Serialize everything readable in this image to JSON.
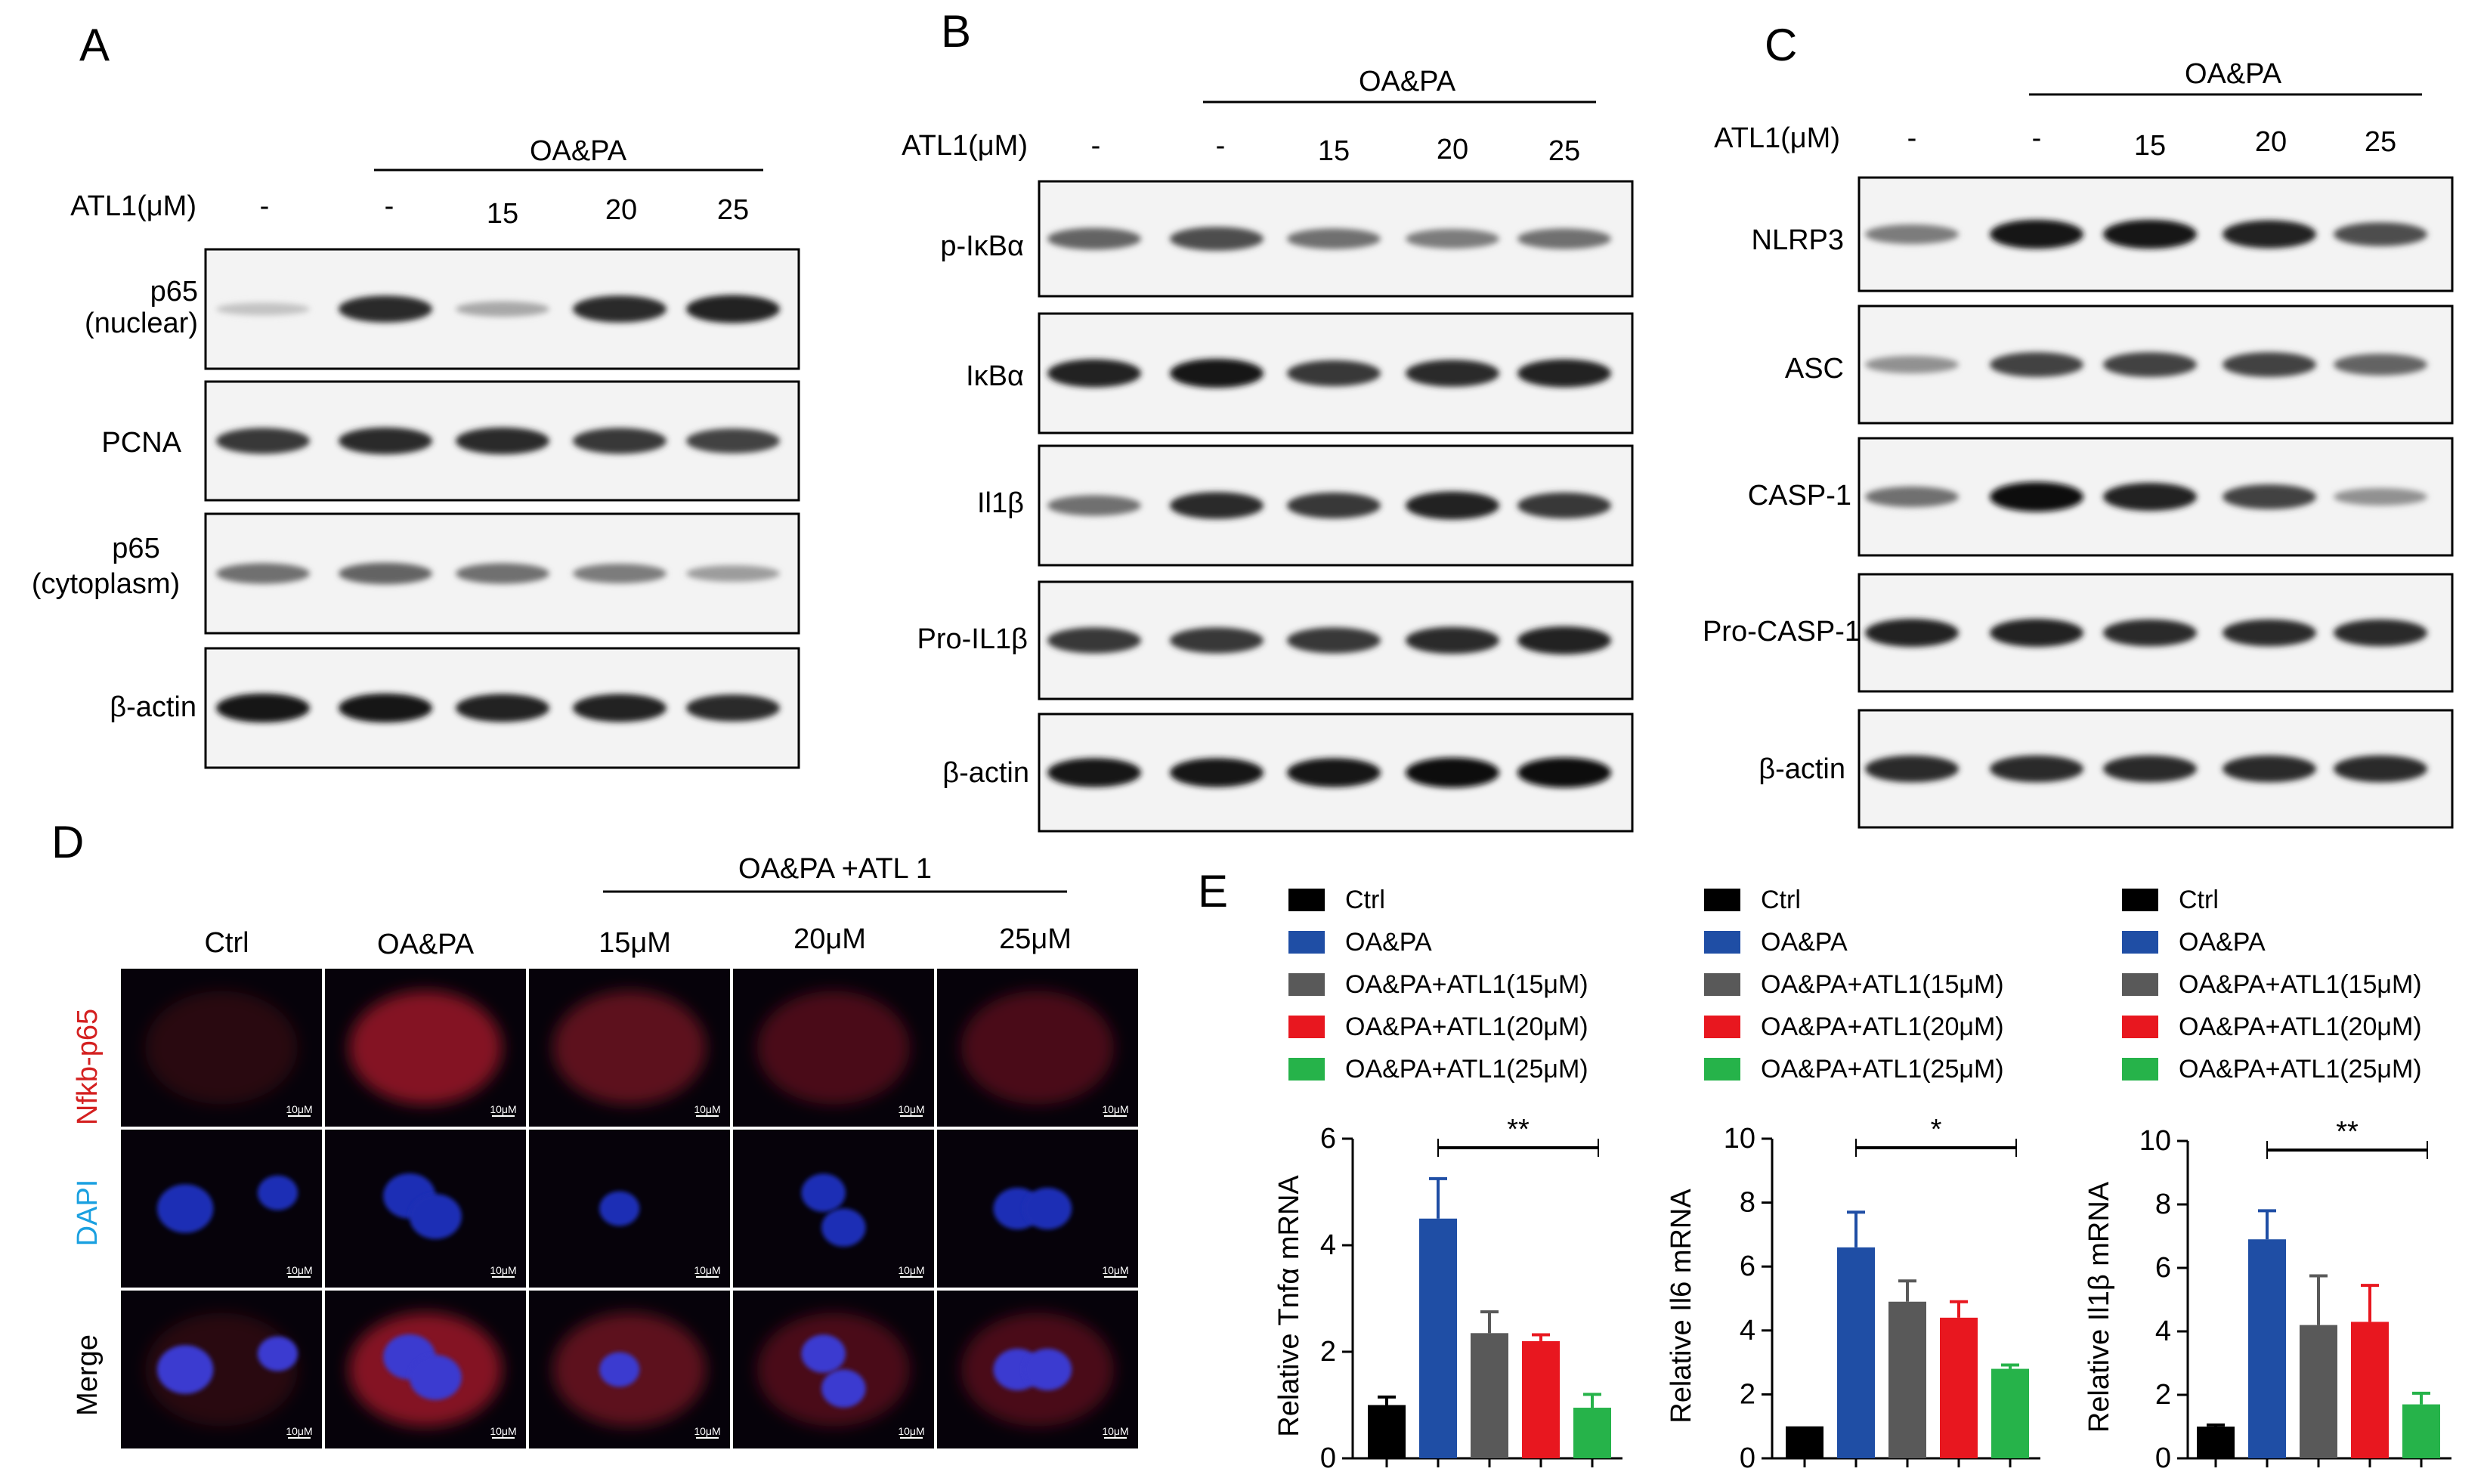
{
  "panels": {
    "A": {
      "letter": "A",
      "treatment_header": "OA&PA",
      "atl_label": "ATL1(μM)",
      "lanes": [
        "-",
        "-",
        "15",
        "20",
        "25"
      ],
      "bands": [
        {
          "label": "p65 (nuclear)",
          "intensity": [
            0.18,
            0.85,
            0.3,
            0.85,
            0.9
          ]
        },
        {
          "label": "PCNA",
          "intensity": [
            0.8,
            0.85,
            0.85,
            0.8,
            0.75
          ]
        },
        {
          "label": "p65 (cytoplasm)",
          "intensity": [
            0.55,
            0.6,
            0.55,
            0.5,
            0.35
          ]
        },
        {
          "label": "β-actin",
          "intensity": [
            0.95,
            0.95,
            0.9,
            0.9,
            0.85
          ]
        }
      ]
    },
    "B": {
      "letter": "B",
      "treatment_header": "OA&PA",
      "atl_label": "ATL1(μM)",
      "lanes": [
        "-",
        "-",
        "15",
        "20",
        "25"
      ],
      "bands": [
        {
          "label": "p-IκBα",
          "intensity": [
            0.6,
            0.7,
            0.55,
            0.5,
            0.55
          ]
        },
        {
          "label": "IκBα",
          "intensity": [
            0.9,
            0.95,
            0.8,
            0.85,
            0.9
          ]
        },
        {
          "label": "Il1β",
          "intensity": [
            0.55,
            0.85,
            0.8,
            0.9,
            0.8
          ]
        },
        {
          "label": "Pro-IL1β",
          "intensity": [
            0.8,
            0.8,
            0.8,
            0.85,
            0.9
          ]
        },
        {
          "label": "β-actin",
          "intensity": [
            0.95,
            0.95,
            0.95,
            1.0,
            1.0
          ]
        }
      ]
    },
    "C": {
      "letter": "C",
      "treatment_header": "OA&PA",
      "atl_label": "ATL1(μM)",
      "lanes": [
        "-",
        "-",
        "15",
        "20",
        "25"
      ],
      "bands": [
        {
          "label": "NLRP3",
          "intensity": [
            0.5,
            0.95,
            0.95,
            0.9,
            0.7
          ]
        },
        {
          "label": "ASC",
          "intensity": [
            0.4,
            0.75,
            0.75,
            0.75,
            0.6
          ]
        },
        {
          "label": "CASP-1",
          "intensity": [
            0.55,
            0.98,
            0.9,
            0.75,
            0.4
          ]
        },
        {
          "label": "Pro-CASP-1",
          "intensity": [
            0.9,
            0.9,
            0.85,
            0.85,
            0.85
          ]
        },
        {
          "label": "β-actin",
          "intensity": [
            0.85,
            0.85,
            0.85,
            0.85,
            0.85
          ]
        }
      ]
    },
    "D": {
      "letter": "D",
      "treatment_header": "OA&PA +ATL 1",
      "columns": [
        "Ctrl",
        "OA&PA",
        "15μM",
        "20μM",
        "25μM"
      ],
      "rows": [
        {
          "label": "Nfkb-p65",
          "color": "#d42020"
        },
        {
          "label": "DAPI",
          "color": "#1aa0e0"
        },
        {
          "label": "Merge",
          "color": "#000000"
        }
      ],
      "scale_bar_text": "10μM"
    },
    "E": {
      "letter": "E",
      "colors": [
        "#000000",
        "#1f4ea5",
        "#595959",
        "#e8171f",
        "#26b34a"
      ]
    }
  },
  "chart_data": [
    {
      "type": "bar",
      "ylabel": "Relative Tnfα mRNA",
      "ylim": [
        0,
        6
      ],
      "yticks": [
        "0",
        "2",
        "4",
        "6"
      ],
      "categories": [
        "Ctrl",
        "OA&PA",
        "OA&PA+ATL1(15μM)",
        "OA&PA+ATL1(20μM)",
        "OA&PA+ATL1(25μM)"
      ],
      "values": [
        1.0,
        4.5,
        2.35,
        2.2,
        0.95
      ],
      "errors": [
        0.15,
        0.75,
        0.4,
        0.12,
        0.25
      ],
      "significance": {
        "label": "**",
        "from": 1,
        "to": 4
      }
    },
    {
      "type": "bar",
      "ylabel": "Relative Il6 mRNA",
      "ylim": [
        0,
        10
      ],
      "yticks": [
        "0",
        "2",
        "4",
        "6",
        "8",
        "10"
      ],
      "categories": [
        "Ctrl",
        "OA&PA",
        "OA&PA+ATL1(15μM)",
        "OA&PA+ATL1(20μM)",
        "OA&PA+ATL1(25μM)"
      ],
      "values": [
        1.0,
        6.6,
        4.9,
        4.4,
        2.8
      ],
      "errors": [
        0.0,
        1.1,
        0.65,
        0.5,
        0.12
      ],
      "significance": {
        "label": "*",
        "from": 1,
        "to": 4
      }
    },
    {
      "type": "bar",
      "ylabel": "Relative Il1β mRNA",
      "ylim": [
        0,
        10
      ],
      "yticks": [
        "0",
        "2",
        "4",
        "6",
        "8",
        "10"
      ],
      "categories": [
        "Ctrl",
        "OA&PA",
        "OA&PA+ATL1(15μM)",
        "OA&PA+ATL1(20μM)",
        "OA&PA+ATL1(25μM)"
      ],
      "values": [
        1.0,
        6.9,
        4.2,
        4.3,
        1.7
      ],
      "errors": [
        0.05,
        0.9,
        1.55,
        1.15,
        0.35
      ],
      "significance": {
        "label": "**",
        "from": 1,
        "to": 4
      }
    }
  ]
}
